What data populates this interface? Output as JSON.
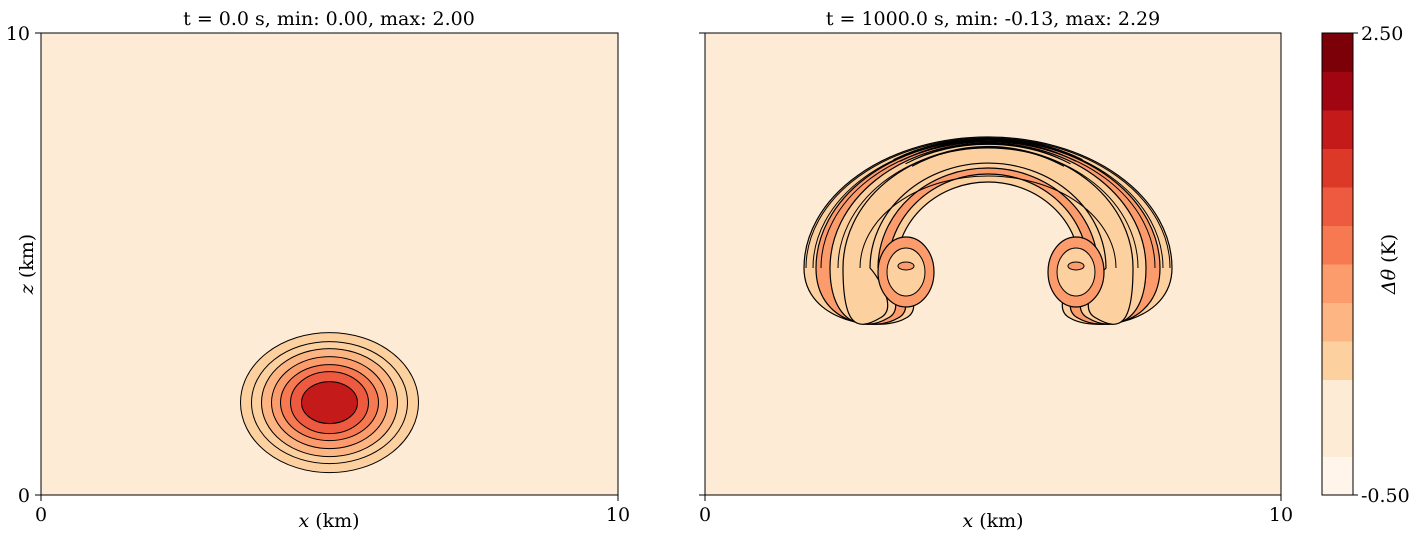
{
  "chart_data": [
    {
      "type": "contour",
      "title": "t = 0.0 s, min: 0.00, max: 2.00",
      "xlabel": "x (km)",
      "xlabel_var": "x",
      "xlabel_unit": "(km)",
      "ylabel": "z (km)",
      "ylabel_var": "z",
      "ylabel_unit": "(km)",
      "xlim": [
        0,
        10
      ],
      "ylim": [
        0,
        10
      ],
      "xticks": [
        "0",
        "10"
      ],
      "yticks": [
        "0",
        "10"
      ],
      "field": "Δθ",
      "min": 0.0,
      "max": 2.0,
      "features": [
        {
          "shape": "bubble",
          "center": [
            5.0,
            2.0
          ],
          "radius": [
            1.5,
            1.5
          ],
          "peak": 2.0
        }
      ]
    },
    {
      "type": "contour",
      "title": "t = 1000.0 s, min: -0.13, max: 2.29",
      "xlabel": "x (km)",
      "xlabel_var": "x",
      "xlabel_unit": "(km)",
      "ylabel": "",
      "xlim": [
        0,
        10
      ],
      "ylim": [
        0,
        10
      ],
      "xticks": [
        "0",
        "10"
      ],
      "yticks": [],
      "field": "Δθ",
      "min": -0.13,
      "max": 2.29,
      "features": [
        {
          "shape": "mushroom-cap",
          "center": [
            5.0,
            4.8
          ],
          "outer_radius": [
            3.1,
            3.1
          ],
          "inner_radius": [
            2.1,
            2.0
          ],
          "top": 7.8,
          "peak": 2.29
        },
        {
          "shape": "vortex-roll",
          "center": [
            3.5,
            4.9
          ],
          "side": "left"
        },
        {
          "shape": "vortex-roll",
          "center": [
            6.5,
            4.9
          ],
          "side": "right"
        }
      ]
    }
  ],
  "colorbar": {
    "label": "Δθ (K)",
    "label_symbol": "Δθ",
    "label_unit": "(K)",
    "vmin": -0.5,
    "vmax": 2.5,
    "tick_max": "2.50",
    "tick_min": "-0.50",
    "levels": [
      -0.5,
      -0.2,
      0.1,
      0.4,
      0.7,
      1.0,
      1.3,
      1.6,
      1.9,
      2.2,
      2.5
    ],
    "colors": [
      "#fff5eb",
      "#fdebd5",
      "#fdebd5",
      "#fdd09f",
      "#fdb683",
      "#fc9c6c",
      "#f67951",
      "#ed5a3f",
      "#dc3929",
      "#c41a1a",
      "#a20512",
      "#7c0008"
    ]
  },
  "background_color": "#fdebd5",
  "contour_line_color": "#000000"
}
